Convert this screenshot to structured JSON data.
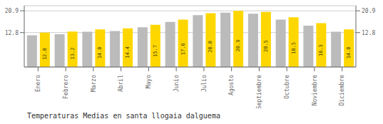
{
  "chart_data": {
    "type": "bar",
    "title": "Temperaturas Medias en santa llogaia dalguema",
    "categories": [
      "Enero",
      "Febrero",
      "Marzo",
      "Abril",
      "Mayo",
      "Junio",
      "Julio",
      "Agosto",
      "Septiembre",
      "Octubre",
      "Noviembre",
      "Diciembre"
    ],
    "series": [
      {
        "color": "#BBBBBB",
        "values": [
          11.8,
          12.2,
          13.1,
          13.4,
          14.8,
          16.8,
          19.3,
          20.2,
          19.8,
          17.6,
          15.4,
          13.1
        ]
      },
      {
        "color": "#FFD700",
        "values": [
          12.8,
          13.2,
          14.0,
          14.4,
          15.7,
          17.6,
          20.0,
          20.9,
          20.5,
          18.5,
          16.3,
          14.0
        ],
        "data_labels": true,
        "value_labels": [
          "12.8",
          "13.2",
          "14.0",
          "14.4",
          "15.7",
          "17.6",
          "20.0",
          "20.9",
          "20.5",
          "18.5",
          "16.3",
          "14.0"
        ]
      }
    ],
    "ylim": [
      0,
      22.8
    ],
    "yticks": [
      12.8,
      20.9
    ],
    "y2lim": [
      0,
      22.8
    ],
    "y2ticks": [
      12.8,
      20.9
    ],
    "grid": true
  }
}
